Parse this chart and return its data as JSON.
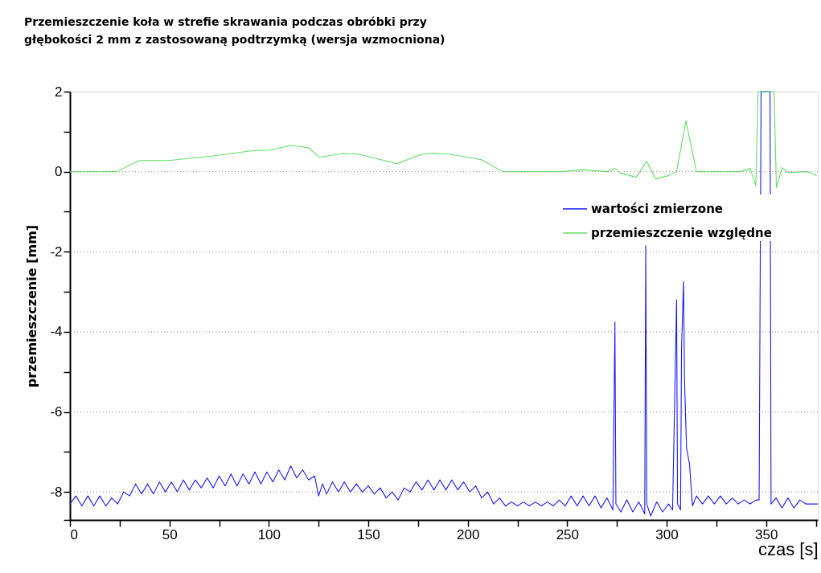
{
  "chart_data": {
    "type": "line",
    "title": "Przemieszczenie koła w strefie skrawania podczas obróbki przy głębokości 2 mm z zastosowaną podtrzymką (wersja wzmocniona)",
    "xlabel": "czas [s]",
    "ylabel": "przemieszczenie [mm]",
    "xlim": [
      0,
      376
    ],
    "ylim": [
      -8.7,
      2
    ],
    "xticks": [
      0,
      {
        "value": 25,
        "label": null
      },
      50,
      {
        "value": 75,
        "label": null
      },
      100,
      {
        "value": 125,
        "label": null
      },
      150,
      {
        "value": 175,
        "label": null
      },
      200,
      {
        "value": 225,
        "label": null
      },
      250,
      {
        "value": 275,
        "label": null
      },
      300,
      {
        "value": 325,
        "label": null
      },
      350,
      {
        "value": 375,
        "label": null
      }
    ],
    "yticks": [
      {
        "value": -8.7,
        "label": null
      },
      -8,
      {
        "value": -7,
        "label": null
      },
      -6,
      {
        "value": -5,
        "label": null
      },
      -4,
      {
        "value": -3,
        "label": null
      },
      -2,
      {
        "value": -1,
        "label": null
      },
      0,
      {
        "value": 1,
        "label": null
      },
      2
    ],
    "grid": "y",
    "legend": "right",
    "series": [
      {
        "name": "wartości zmierzone",
        "color": "#1a1aff",
        "x": [
          0,
          3,
          6,
          9,
          12,
          15,
          18,
          21,
          24,
          27,
          30,
          33,
          36,
          39,
          42,
          45,
          48,
          51,
          54,
          57,
          60,
          63,
          66,
          69,
          72,
          75,
          78,
          81,
          84,
          87,
          90,
          93,
          96,
          99,
          102,
          105,
          108,
          111,
          114,
          117,
          120,
          123,
          125,
          127,
          129,
          132,
          135,
          138,
          141,
          144,
          147,
          150,
          153,
          156,
          159,
          162,
          165,
          168,
          171,
          174,
          177,
          180,
          183,
          186,
          189,
          192,
          195,
          198,
          201,
          204,
          207,
          210,
          213,
          216,
          219,
          222,
          225,
          228,
          231,
          234,
          237,
          240,
          243,
          246,
          249,
          252,
          255,
          258,
          261,
          264,
          267,
          270,
          273,
          274,
          274.5,
          277,
          280,
          283,
          286,
          289,
          289.5,
          290,
          292,
          295,
          298,
          301,
          303,
          305,
          305.5,
          307,
          307.5,
          308.5,
          309,
          310,
          311.5,
          313,
          315,
          318,
          321,
          324,
          327,
          330,
          333,
          336,
          339,
          342,
          345,
          346.5,
          347,
          347.5,
          352,
          352.5,
          355,
          358,
          361,
          364,
          367,
          370,
          376
        ],
        "values": [
          -8.3,
          -8.1,
          -8.35,
          -8.1,
          -8.35,
          -8.1,
          -8.35,
          -8.15,
          -8.3,
          -8.0,
          -8.1,
          -7.8,
          -8.05,
          -7.8,
          -8.05,
          -7.75,
          -8.0,
          -7.75,
          -8.0,
          -7.7,
          -7.95,
          -7.7,
          -7.9,
          -7.65,
          -7.9,
          -7.6,
          -7.85,
          -7.55,
          -7.85,
          -7.55,
          -7.8,
          -7.5,
          -7.8,
          -7.5,
          -7.75,
          -7.45,
          -7.7,
          -7.35,
          -7.65,
          -7.45,
          -7.7,
          -7.6,
          -8.1,
          -7.8,
          -8.05,
          -7.75,
          -8.0,
          -7.75,
          -8.0,
          -7.8,
          -8.0,
          -7.85,
          -8.05,
          -7.9,
          -8.15,
          -8.0,
          -8.2,
          -7.9,
          -8.0,
          -7.75,
          -7.95,
          -7.7,
          -7.95,
          -7.7,
          -7.95,
          -7.7,
          -7.95,
          -7.75,
          -8.0,
          -7.85,
          -8.15,
          -8.0,
          -8.3,
          -8.15,
          -8.35,
          -8.25,
          -8.35,
          -8.25,
          -8.35,
          -8.25,
          -8.35,
          -8.25,
          -8.35,
          -8.2,
          -8.35,
          -8.1,
          -8.35,
          -8.1,
          -8.35,
          -8.1,
          -8.4,
          -8.15,
          -8.45,
          -3.75,
          -8.3,
          -8.5,
          -8.2,
          -8.5,
          -8.25,
          -8.55,
          -1.85,
          -8.3,
          -8.6,
          -8.25,
          -8.5,
          -8.3,
          -8.45,
          -3.2,
          -8.3,
          -8.45,
          -4.4,
          -2.75,
          -5.2,
          -6.9,
          -7.3,
          -8.35,
          -8.1,
          -8.3,
          -8.1,
          -8.3,
          -8.1,
          -8.3,
          -8.15,
          -8.3,
          -8.2,
          -8.3,
          -8.2,
          -8.2,
          -3.0,
          2,
          2,
          -8.3,
          -8.15,
          -8.4,
          -8.15,
          -8.4,
          -8.2,
          -8.3,
          -8.3
        ]
      },
      {
        "name": "przemieszczenie względne",
        "color": "#66dd66",
        "x": [
          0,
          23.4,
          34.7,
          49.6,
          69.8,
          91,
          100.8,
          111,
          120,
          125.4,
          137.5,
          145,
          164.5,
          177,
          182.7,
          190.7,
          206.9,
          217.7,
          247,
          258,
          270,
          274,
          276.6,
          284.7,
          290,
          294.4,
          300.8,
          305,
          309.7,
          315,
          337,
          342,
          344.8,
          346,
          354,
          355.2,
          358,
          361,
          371,
          375.4
        ],
        "values": [
          0,
          0,
          0.28,
          0.28,
          0.38,
          0.52,
          0.54,
          0.66,
          0.6,
          0.36,
          0.46,
          0.44,
          0.2,
          0.44,
          0.46,
          0.44,
          0.3,
          0,
          0,
          0.05,
          0,
          0.08,
          -0.03,
          -0.14,
          0.26,
          -0.18,
          -0.1,
          0,
          1.27,
          0,
          0,
          0.08,
          -0.34,
          2,
          2,
          -0.4,
          0.1,
          -0.02,
          0,
          -0.1
        ]
      }
    ]
  }
}
